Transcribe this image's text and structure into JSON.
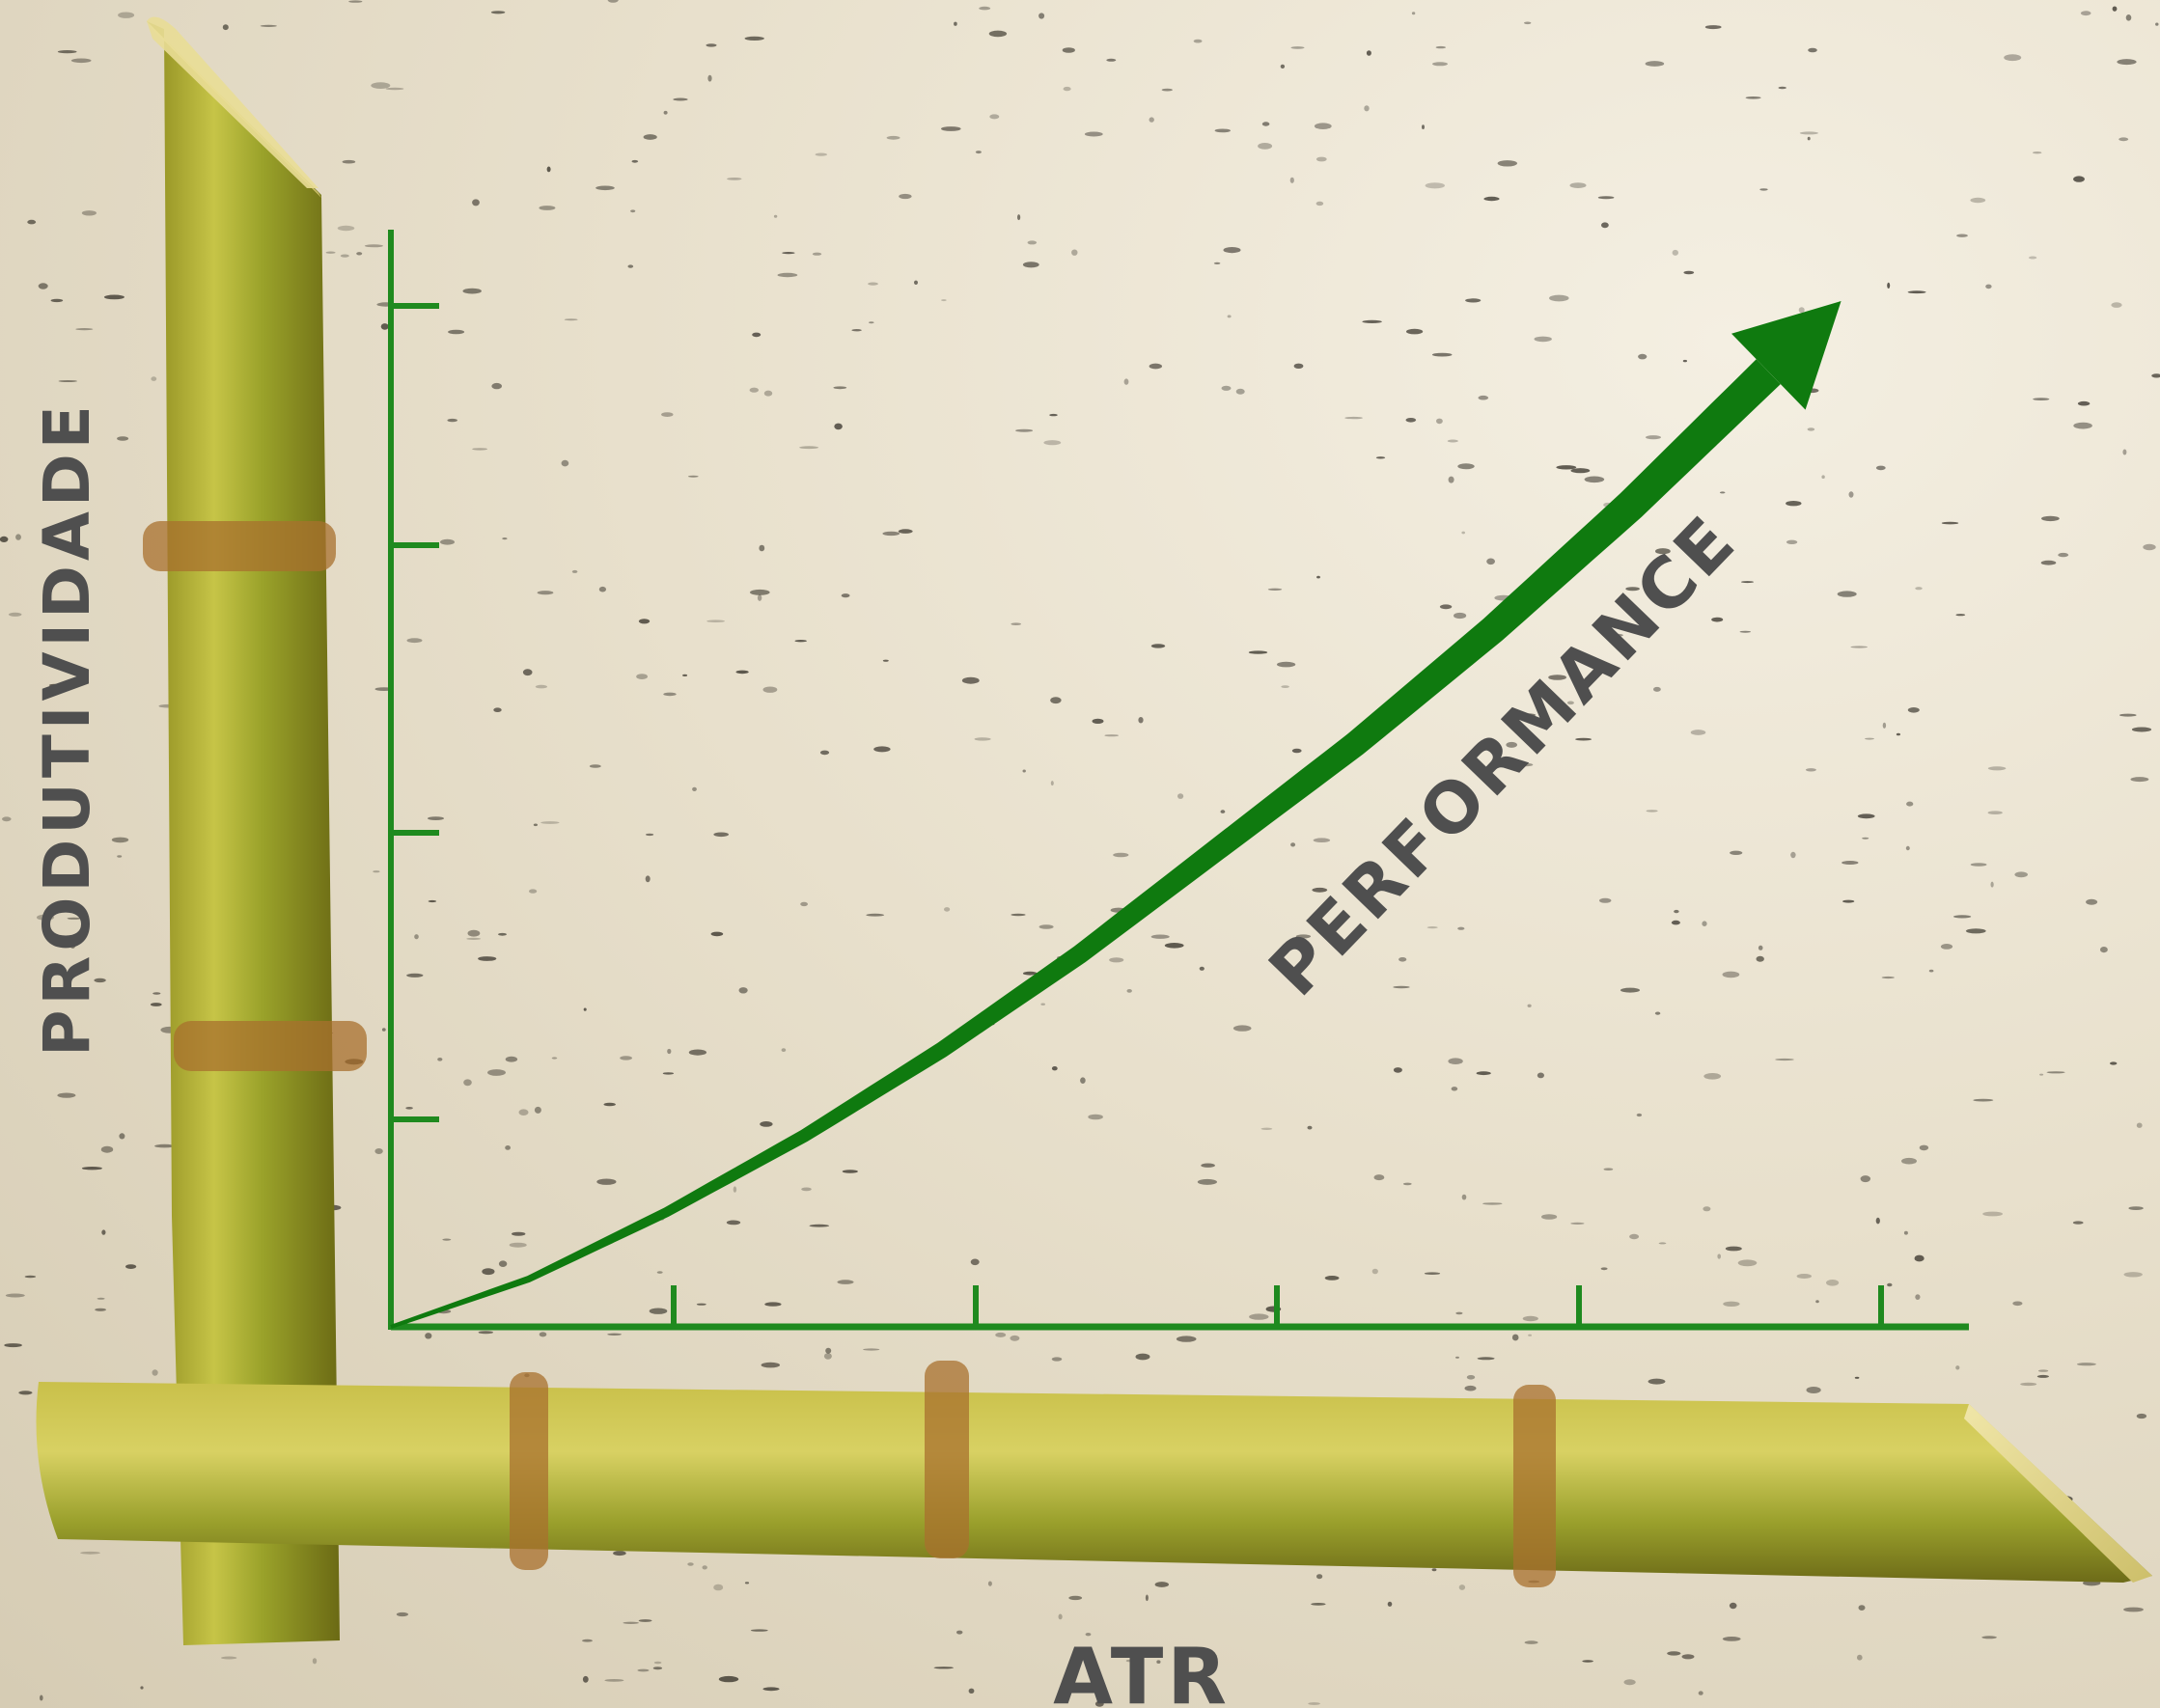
{
  "chart_data": {
    "type": "line",
    "xlabel": "ATR",
    "ylabel": "PRODUTIVIDADE",
    "annotation": "PERFORMANCE",
    "x_ticks": 5,
    "y_ticks": 5,
    "grid": false,
    "series": [
      {
        "x": [
          0,
          0.1,
          0.2,
          0.3,
          0.4,
          0.5,
          0.6,
          0.7,
          0.8,
          0.9,
          1.0
        ],
        "values": [
          0,
          0.05,
          0.12,
          0.2,
          0.29,
          0.39,
          0.5,
          0.61,
          0.73,
          0.86,
          1.0
        ]
      }
    ],
    "colors": {
      "axis": "#1f8a1f",
      "curve": "#0f7a0f",
      "text": "#4f4f4f",
      "cane": "#a9b036",
      "node": "#a8702e"
    }
  }
}
